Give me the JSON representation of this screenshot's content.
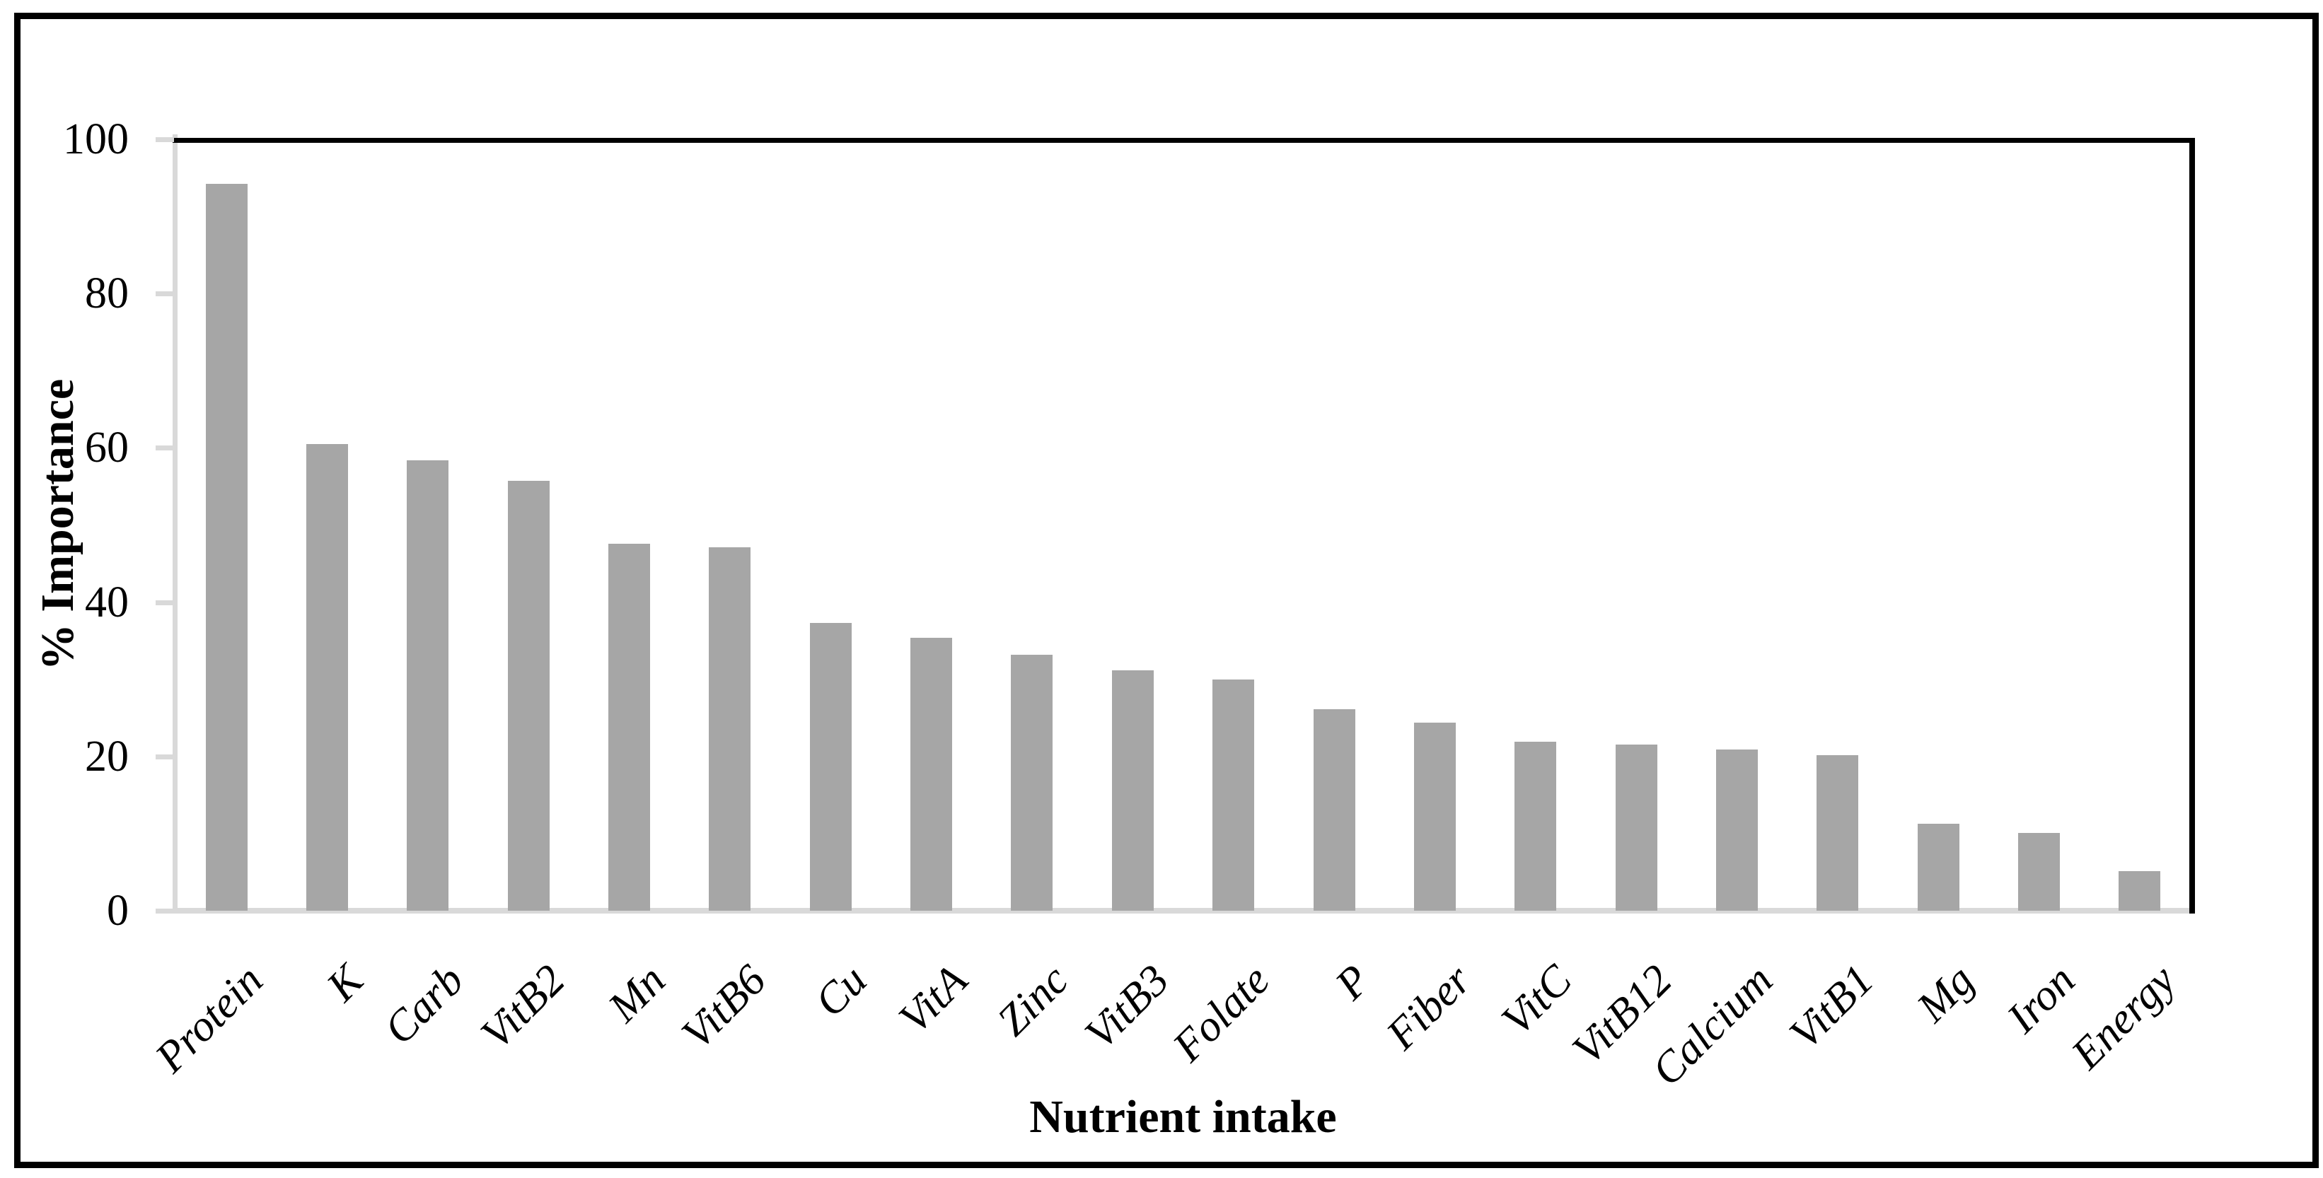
{
  "chart_data": {
    "type": "bar",
    "title": "",
    "xlabel": "Nutrient intake",
    "ylabel": "% Importance",
    "categories": [
      "Protein",
      "K",
      "Carb",
      "VitB2",
      "Mn",
      "VitB6",
      "Cu",
      "VitA",
      "Zinc",
      "VitB3",
      "Folate",
      "P",
      "Fiber",
      "VitC",
      "VitB12",
      "Calcium",
      "VitB1",
      "Mg",
      "Iron",
      "Energy"
    ],
    "values": [
      94.2,
      60.5,
      58.4,
      55.7,
      47.6,
      47.1,
      37.3,
      35.4,
      33.2,
      31.2,
      30.0,
      26.1,
      24.4,
      21.9,
      21.5,
      20.9,
      20.2,
      11.3,
      10.1,
      5.1
    ],
    "ylim": [
      0,
      100
    ],
    "yticks": [
      0,
      20,
      40,
      60,
      80,
      100
    ],
    "grid": "off",
    "legend": "none",
    "bar_color": "#A6A6A6",
    "axis_color": "#D9D9D9",
    "frame_color": "#000000"
  }
}
